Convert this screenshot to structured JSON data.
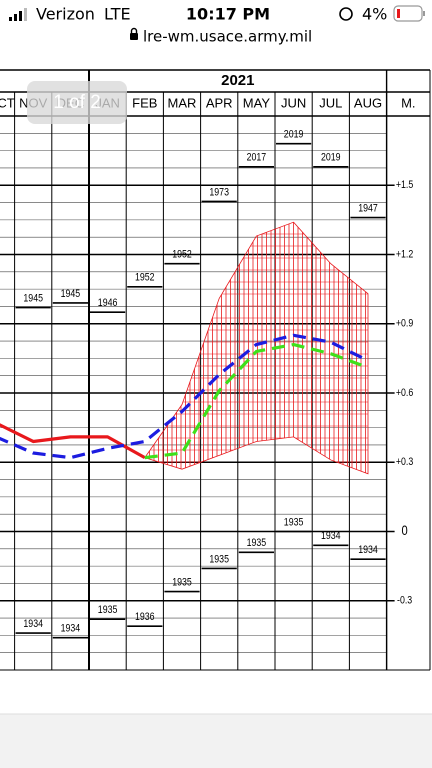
{
  "status_bar": {
    "carrier": "Verizon",
    "network": "LTE",
    "time": "10:17 PM",
    "battery": "4%"
  },
  "address_bar": {
    "url": "lre-wm.usace.army.mil"
  },
  "page_indicator": "1 of 2",
  "chart_data": {
    "type": "line",
    "year_label": "2021",
    "axis_header": "M.",
    "categories": [
      "CT",
      "NOV",
      "DEC",
      "JAN",
      "FEB",
      "MAR",
      "APR",
      "MAY",
      "JUN",
      "JUL",
      "AUG"
    ],
    "ylim": [
      -0.6,
      1.8
    ],
    "yticks": [
      {
        "value": 1.5,
        "label": "+1.5"
      },
      {
        "value": 1.2,
        "label": "+1.2"
      },
      {
        "value": 0.9,
        "label": "+0.9"
      },
      {
        "value": 0.6,
        "label": "+0.6"
      },
      {
        "value": 0.3,
        "label": "+0.3"
      },
      0,
      {
        "value": -0.3,
        "label": "-0.3"
      }
    ],
    "yminorticks": [
      -0.525,
      -0.45,
      -0.375,
      -0.225,
      -0.15,
      -0.075,
      0.075,
      0.15,
      0.225,
      0.375,
      0.45,
      0.525,
      0.675,
      0.75,
      0.825,
      0.975,
      1.05,
      1.125,
      1.275,
      1.35,
      1.425,
      1.575,
      1.65,
      1.725
    ],
    "grid": true,
    "series": [
      {
        "color": "#e8181c",
        "dashed": false,
        "values": [
          0.47,
          0.39,
          0.41,
          0.41,
          0.32,
          null,
          null,
          null,
          null,
          null,
          null
        ]
      },
      {
        "color": "#1c1ce0",
        "dashed": true,
        "values": [
          0.41,
          0.34,
          0.32,
          0.36,
          0.39,
          0.52,
          0.68,
          0.81,
          0.85,
          0.82,
          0.74
        ]
      },
      {
        "color": "#3ee01a",
        "dashed": true,
        "values": [
          null,
          null,
          null,
          null,
          0.32,
          0.34,
          0.61,
          0.78,
          0.81,
          0.77,
          0.71
        ]
      }
    ],
    "band": {
      "color": "#e8181c",
      "upper": [
        null,
        null,
        null,
        null,
        0.32,
        0.55,
        1.01,
        1.28,
        1.34,
        1.16,
        1.03
      ],
      "lower": [
        null,
        null,
        null,
        null,
        0.32,
        0.27,
        0.33,
        0.39,
        0.41,
        0.31,
        0.25
      ]
    },
    "high_records": {
      "labels": [
        null,
        "1945",
        "1945",
        "1946",
        "1952",
        "1952",
        "1973",
        "2017",
        "2019",
        "2019",
        "1947"
      ],
      "values": [
        null,
        0.97,
        0.99,
        0.95,
        1.06,
        1.16,
        1.43,
        1.58,
        1.68,
        1.58,
        1.36
      ]
    },
    "low_records": {
      "labels": [
        null,
        "1934",
        "1934",
        "1935",
        "1936",
        "1935",
        "1935",
        "1935",
        "1935",
        "1934",
        "1934"
      ],
      "values": [
        null,
        -0.44,
        -0.46,
        -0.38,
        -0.41,
        -0.26,
        -0.16,
        -0.09,
        0.0,
        -0.06,
        -0.12
      ]
    }
  }
}
